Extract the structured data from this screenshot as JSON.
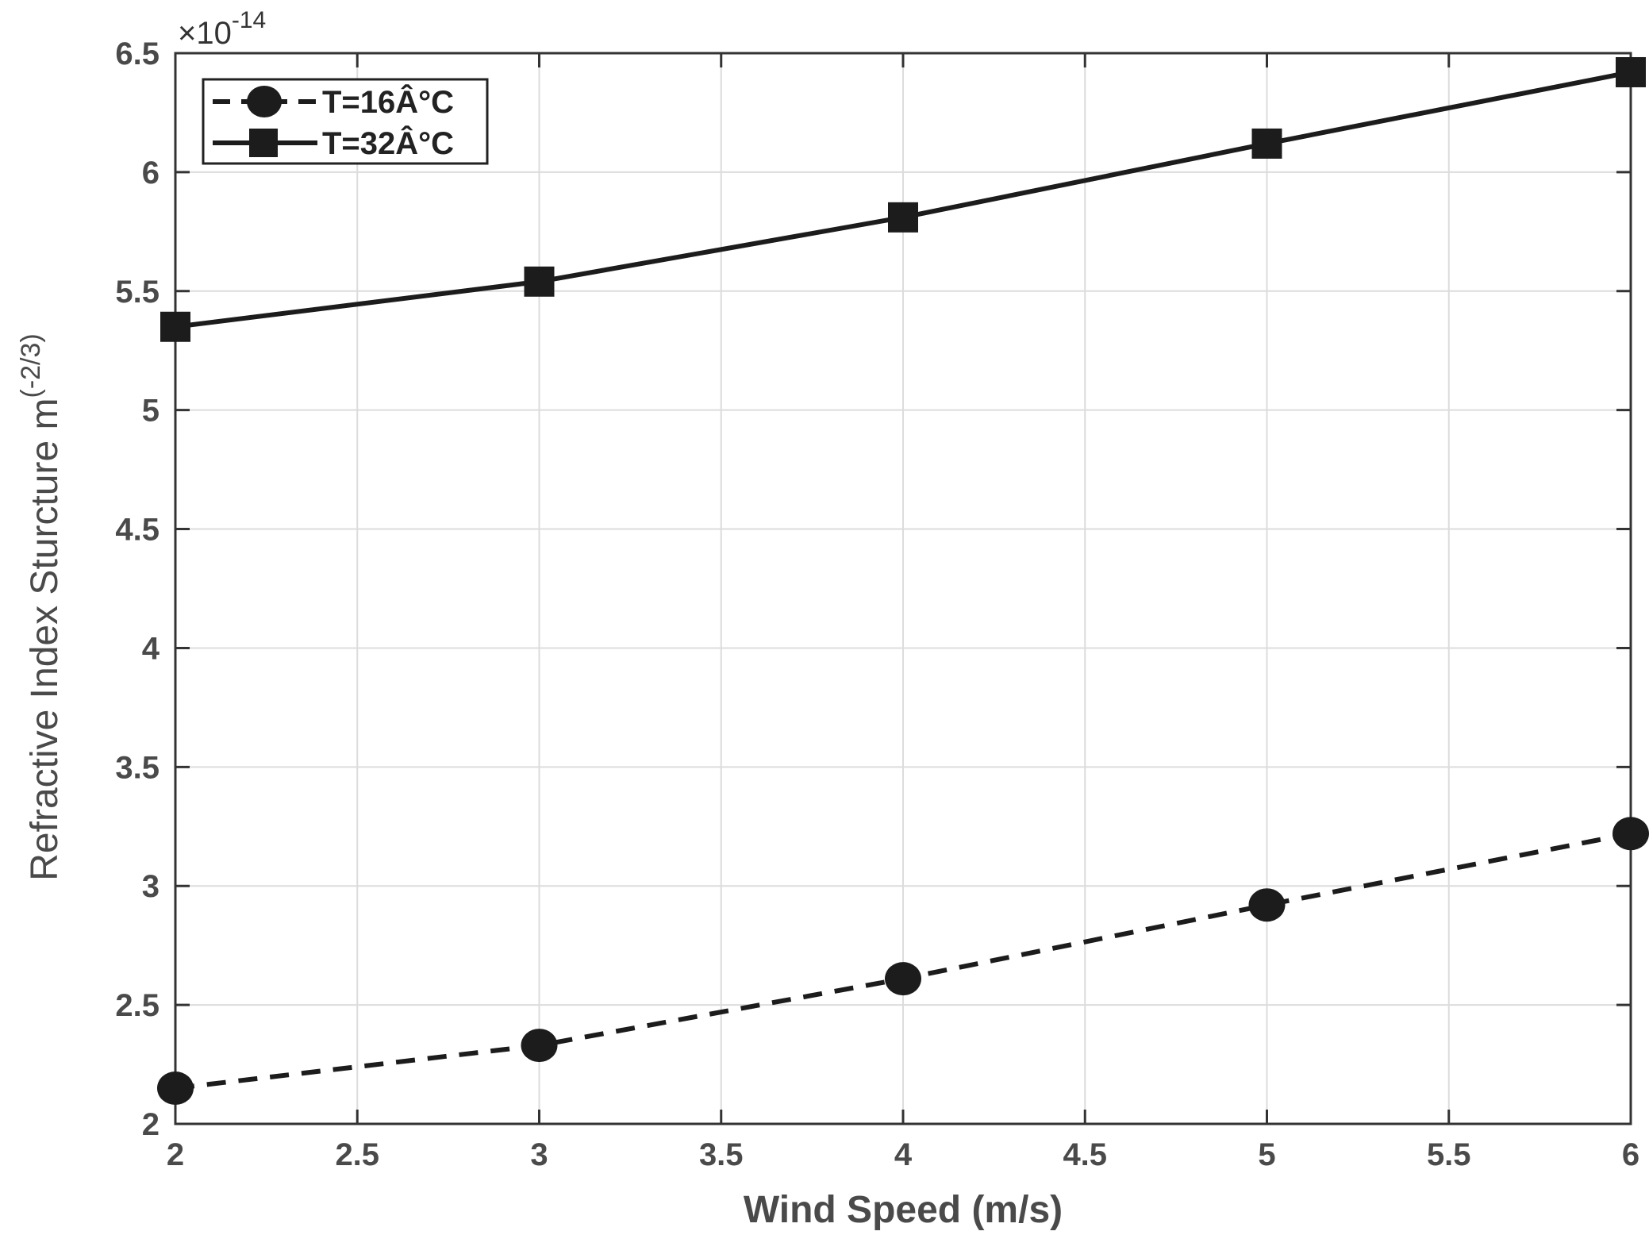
{
  "chart_data": {
    "type": "line",
    "title": "",
    "xlabel": "Wind Speed (m/s)",
    "ylabel": {
      "base": "Refractive Index Sturcture m",
      "superscript": "(-2/3)"
    },
    "y_scale_multiplier": {
      "prefix": "×10",
      "exponent": "-14"
    },
    "xlim": [
      2,
      6
    ],
    "ylim": [
      2,
      6.5
    ],
    "xticks": [
      2,
      2.5,
      3,
      3.5,
      4,
      4.5,
      5,
      5.5,
      6
    ],
    "xtick_labels": [
      "2",
      "2.5",
      "3",
      "3.5",
      "4",
      "4.5",
      "5",
      "5.5",
      "6"
    ],
    "yticks": [
      2,
      2.5,
      3,
      3.5,
      4,
      4.5,
      5,
      5.5,
      6,
      6.5
    ],
    "ytick_labels": [
      "2",
      "2.5",
      "3",
      "3.5",
      "4",
      "4.5",
      "5",
      "5.5",
      "6",
      "6.5"
    ],
    "grid": true,
    "legend_position": "top-left",
    "x": [
      2,
      3,
      4,
      5,
      6
    ],
    "series": [
      {
        "name": "T=16Â°C",
        "legend_label": "T=16Â°C",
        "line_style": "dashed",
        "marker": "circle",
        "color": "#1c1c1c",
        "values": [
          2.15,
          2.33,
          2.61,
          2.92,
          3.22
        ]
      },
      {
        "name": "T=32Â°C",
        "legend_label": "T=32Â°C",
        "line_style": "solid",
        "marker": "square",
        "color": "#1c1c1c",
        "values": [
          5.35,
          5.54,
          5.81,
          6.12,
          6.42
        ]
      }
    ],
    "colors": {
      "grid": "#dcdcdc",
      "axis": "#333333",
      "text": "#4a4a4a"
    }
  }
}
